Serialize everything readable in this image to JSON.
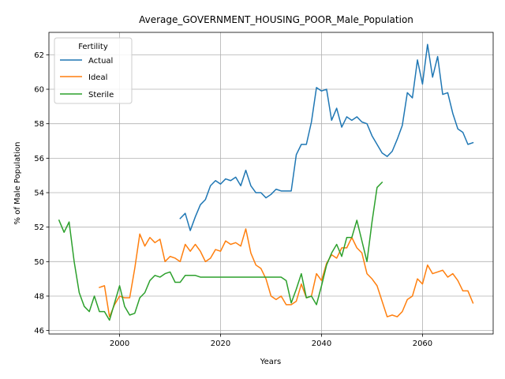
{
  "chart_data": {
    "type": "line",
    "title": "Average_GOVERNMENT_HOUSING_POOR_Male_Population",
    "xlabel": "Years",
    "ylabel": "% of Male Population",
    "xlim": [
      1986,
      2074
    ],
    "ylim": [
      45.8,
      63.3
    ],
    "x_ticks": [
      2000,
      2020,
      2040,
      2060
    ],
    "y_ticks": [
      46,
      48,
      50,
      52,
      54,
      56,
      58,
      60,
      62
    ],
    "grid": true,
    "legend": {
      "title": "Fertility",
      "placement": "top-left"
    },
    "series": [
      {
        "name": "Actual",
        "color": "#1f77b4",
        "points": [
          [
            2012,
            52.5
          ],
          [
            2013,
            52.8
          ],
          [
            2014,
            51.8
          ],
          [
            2015,
            52.6
          ],
          [
            2016,
            53.3
          ],
          [
            2017,
            53.6
          ],
          [
            2018,
            54.4
          ],
          [
            2019,
            54.7
          ],
          [
            2020,
            54.5
          ],
          [
            2021,
            54.8
          ],
          [
            2022,
            54.7
          ],
          [
            2023,
            54.9
          ],
          [
            2024,
            54.4
          ],
          [
            2025,
            55.3
          ],
          [
            2026,
            54.4
          ],
          [
            2027,
            54.0
          ],
          [
            2028,
            54.0
          ],
          [
            2029,
            53.7
          ],
          [
            2030,
            53.9
          ],
          [
            2031,
            54.2
          ],
          [
            2032,
            54.1
          ],
          [
            2033,
            54.1
          ],
          [
            2034,
            54.1
          ],
          [
            2035,
            56.2
          ],
          [
            2036,
            56.8
          ],
          [
            2037,
            56.8
          ],
          [
            2038,
            58.1
          ],
          [
            2039,
            60.1
          ],
          [
            2040,
            59.9
          ],
          [
            2041,
            60.0
          ],
          [
            2042,
            58.2
          ],
          [
            2043,
            58.9
          ],
          [
            2044,
            57.8
          ],
          [
            2045,
            58.4
          ],
          [
            2046,
            58.2
          ],
          [
            2047,
            58.4
          ],
          [
            2048,
            58.1
          ],
          [
            2049,
            58.0
          ],
          [
            2050,
            57.3
          ],
          [
            2051,
            56.8
          ],
          [
            2052,
            56.3
          ],
          [
            2053,
            56.1
          ],
          [
            2054,
            56.4
          ],
          [
            2055,
            57.1
          ],
          [
            2056,
            57.9
          ],
          [
            2057,
            59.8
          ],
          [
            2058,
            59.5
          ],
          [
            2059,
            61.7
          ],
          [
            2060,
            60.3
          ],
          [
            2061,
            62.6
          ],
          [
            2062,
            60.7
          ],
          [
            2063,
            61.9
          ],
          [
            2064,
            59.7
          ],
          [
            2065,
            59.8
          ],
          [
            2066,
            58.6
          ],
          [
            2067,
            57.7
          ],
          [
            2068,
            57.5
          ],
          [
            2069,
            56.8
          ],
          [
            2070,
            56.9
          ]
        ]
      },
      {
        "name": "Ideal",
        "color": "#ff7f0e",
        "points": [
          [
            1996,
            48.5
          ],
          [
            1997,
            48.6
          ],
          [
            1998,
            46.8
          ],
          [
            1999,
            47.5
          ],
          [
            2000,
            48.0
          ],
          [
            2001,
            47.9
          ],
          [
            2002,
            47.9
          ],
          [
            2003,
            49.6
          ],
          [
            2004,
            51.6
          ],
          [
            2005,
            50.9
          ],
          [
            2006,
            51.4
          ],
          [
            2007,
            51.1
          ],
          [
            2008,
            51.3
          ],
          [
            2009,
            50.0
          ],
          [
            2010,
            50.3
          ],
          [
            2011,
            50.2
          ],
          [
            2012,
            50.0
          ],
          [
            2013,
            51.0
          ],
          [
            2014,
            50.6
          ],
          [
            2015,
            51.0
          ],
          [
            2016,
            50.6
          ],
          [
            2017,
            50.0
          ],
          [
            2018,
            50.2
          ],
          [
            2019,
            50.7
          ],
          [
            2020,
            50.6
          ],
          [
            2021,
            51.2
          ],
          [
            2022,
            51.0
          ],
          [
            2023,
            51.1
          ],
          [
            2024,
            50.9
          ],
          [
            2025,
            51.9
          ],
          [
            2026,
            50.5
          ],
          [
            2027,
            49.8
          ],
          [
            2028,
            49.6
          ],
          [
            2029,
            49.0
          ],
          [
            2030,
            48.0
          ],
          [
            2031,
            47.8
          ],
          [
            2032,
            48.0
          ],
          [
            2033,
            47.5
          ],
          [
            2034,
            47.5
          ],
          [
            2035,
            47.7
          ],
          [
            2036,
            48.7
          ],
          [
            2037,
            47.9
          ],
          [
            2038,
            48.0
          ],
          [
            2039,
            49.3
          ],
          [
            2040,
            48.9
          ],
          [
            2041,
            49.9
          ],
          [
            2042,
            50.4
          ],
          [
            2043,
            50.2
          ],
          [
            2044,
            50.8
          ],
          [
            2045,
            50.8
          ],
          [
            2046,
            51.4
          ],
          [
            2047,
            50.8
          ],
          [
            2048,
            50.5
          ],
          [
            2049,
            49.3
          ],
          [
            2050,
            49.0
          ],
          [
            2051,
            48.6
          ],
          [
            2052,
            47.7
          ],
          [
            2053,
            46.8
          ],
          [
            2054,
            46.9
          ],
          [
            2055,
            46.8
          ],
          [
            2056,
            47.1
          ],
          [
            2057,
            47.8
          ],
          [
            2058,
            48.0
          ],
          [
            2059,
            49.0
          ],
          [
            2060,
            48.7
          ],
          [
            2061,
            49.8
          ],
          [
            2062,
            49.3
          ],
          [
            2063,
            49.4
          ],
          [
            2064,
            49.5
          ],
          [
            2065,
            49.1
          ],
          [
            2066,
            49.3
          ],
          [
            2067,
            48.9
          ],
          [
            2068,
            48.3
          ],
          [
            2069,
            48.3
          ],
          [
            2070,
            47.6
          ]
        ]
      },
      {
        "name": "Sterile",
        "color": "#2ca02c",
        "points": [
          [
            1988,
            52.4
          ],
          [
            1989,
            51.7
          ],
          [
            1990,
            52.3
          ],
          [
            1991,
            50.0
          ],
          [
            1992,
            48.2
          ],
          [
            1993,
            47.4
          ],
          [
            1994,
            47.1
          ],
          [
            1995,
            48.0
          ],
          [
            1996,
            47.1
          ],
          [
            1997,
            47.1
          ],
          [
            1998,
            46.6
          ],
          [
            1999,
            47.6
          ],
          [
            2000,
            48.6
          ],
          [
            2001,
            47.4
          ],
          [
            2002,
            46.9
          ],
          [
            2003,
            47.0
          ],
          [
            2004,
            47.9
          ],
          [
            2005,
            48.2
          ],
          [
            2006,
            48.9
          ],
          [
            2007,
            49.2
          ],
          [
            2008,
            49.1
          ],
          [
            2009,
            49.3
          ],
          [
            2010,
            49.4
          ],
          [
            2011,
            48.8
          ],
          [
            2012,
            48.8
          ],
          [
            2013,
            49.2
          ],
          [
            2014,
            49.2
          ],
          [
            2015,
            49.2
          ],
          [
            2016,
            49.1
          ],
          [
            2017,
            49.1
          ],
          [
            2018,
            49.1
          ],
          [
            2019,
            49.1
          ],
          [
            2020,
            49.1
          ],
          [
            2021,
            49.1
          ],
          [
            2022,
            49.1
          ],
          [
            2023,
            49.1
          ],
          [
            2024,
            49.1
          ],
          [
            2025,
            49.1
          ],
          [
            2026,
            49.1
          ],
          [
            2027,
            49.1
          ],
          [
            2028,
            49.1
          ],
          [
            2029,
            49.1
          ],
          [
            2030,
            49.1
          ],
          [
            2031,
            49.1
          ],
          [
            2032,
            49.1
          ],
          [
            2033,
            48.9
          ],
          [
            2034,
            47.6
          ],
          [
            2035,
            48.4
          ],
          [
            2036,
            49.3
          ],
          [
            2037,
            47.9
          ],
          [
            2038,
            48.0
          ],
          [
            2039,
            47.5
          ],
          [
            2040,
            48.6
          ],
          [
            2041,
            49.8
          ],
          [
            2042,
            50.5
          ],
          [
            2043,
            51.0
          ],
          [
            2044,
            50.3
          ],
          [
            2045,
            51.4
          ],
          [
            2046,
            51.4
          ],
          [
            2047,
            52.4
          ],
          [
            2048,
            51.2
          ],
          [
            2049,
            50.0
          ],
          [
            2050,
            52.3
          ],
          [
            2051,
            54.3
          ],
          [
            2052,
            54.6
          ]
        ]
      }
    ]
  }
}
